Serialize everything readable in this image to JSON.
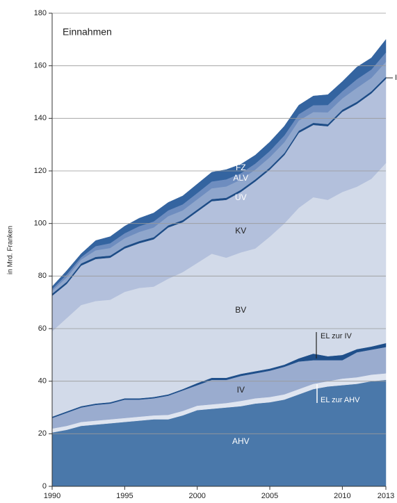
{
  "chart_data": {
    "type": "stacked-area",
    "title": "Einnahmen",
    "y_label": "in Mrd. Franken",
    "x": [
      1990,
      1991,
      1992,
      1993,
      1994,
      1995,
      1996,
      1997,
      1998,
      1999,
      2000,
      2001,
      2002,
      2003,
      2004,
      2005,
      2006,
      2007,
      2008,
      2009,
      2010,
      2011,
      2012,
      2013
    ],
    "xlim": [
      1990,
      2013
    ],
    "xticks": [
      1990,
      1995,
      2000,
      2005,
      2010,
      2013
    ],
    "ylim": [
      0,
      180
    ],
    "yticks": [
      0,
      20,
      40,
      60,
      80,
      100,
      120,
      140,
      160,
      180
    ],
    "grid": true,
    "series": [
      {
        "name": "AHV",
        "color": "#4a78aa",
        "values": [
          20.5,
          21.5,
          23,
          23.5,
          24,
          24.5,
          25,
          25.5,
          25.5,
          27,
          29,
          29.5,
          30,
          30.5,
          31.5,
          32,
          33,
          35,
          37,
          38,
          38.5,
          39,
          40,
          40.5
        ]
      },
      {
        "name": "EL zur AHV",
        "color": "#dfe5f0",
        "values": [
          1.5,
          1.5,
          1.5,
          1.5,
          1.5,
          1.5,
          1.5,
          1.5,
          1.7,
          1.7,
          1.7,
          1.7,
          1.7,
          2,
          2,
          2,
          2,
          2,
          2,
          2,
          2.5,
          2.5,
          2.5,
          2.5
        ]
      },
      {
        "name": "IV",
        "color": "#9aaccf",
        "values": [
          4,
          5,
          5.5,
          6,
          6,
          7,
          6.5,
          6.5,
          7.3,
          7.8,
          7.8,
          9.3,
          8.8,
          9.5,
          9.5,
          10,
          10.5,
          10.5,
          9,
          8,
          7,
          9.5,
          9.5,
          10
        ]
      },
      {
        "name": "EL zur IV",
        "color": "#1f4f8a",
        "values": [
          0.5,
          0.5,
          0.5,
          0.5,
          0.5,
          0.5,
          0.5,
          0.5,
          0.5,
          0.5,
          0.8,
          0.8,
          0.8,
          0.8,
          0.8,
          0.8,
          0.8,
          1.2,
          2.5,
          1.5,
          2,
          1.2,
          1.2,
          1.5
        ]
      },
      {
        "name": "BV",
        "color": "#d2dae9",
        "values": [
          32.5,
          35.5,
          38.5,
          39,
          39,
          40.5,
          42,
          42,
          44,
          44.5,
          45.7,
          47.2,
          45.7,
          46.2,
          46.7,
          50.2,
          53.7,
          57.3,
          59.5,
          59.5,
          62,
          61.8,
          63.8,
          68.5
        ]
      },
      {
        "name": "KV",
        "color": "#b3c0dc",
        "values": [
          13.5,
          13,
          15,
          16,
          16,
          16.5,
          17,
          18,
          19.5,
          19,
          19.5,
          20,
          22,
          23,
          25.5,
          25.5,
          26,
          28.5,
          27.5,
          28,
          30.5,
          31.5,
          32.5,
          32
        ]
      },
      {
        "name": "I",
        "color": "#1d4c86",
        "values": [
          0.8,
          0.8,
          0.8,
          0.8,
          0.8,
          0.8,
          0.8,
          0.8,
          0.8,
          0.8,
          0.8,
          0.8,
          0.8,
          0.8,
          0.8,
          0.8,
          0.8,
          0.8,
          0.8,
          0.8,
          0.8,
          0.8,
          0.8,
          0.8
        ]
      },
      {
        "name": "UV",
        "color": "#8fa6cc",
        "values": [
          1.1,
          1.7,
          1.5,
          2.5,
          2.9,
          3.1,
          3.5,
          3.7,
          3.5,
          3.7,
          3.9,
          4.1,
          4.3,
          3.9,
          3.7,
          3.9,
          4.1,
          3.9,
          4.1,
          4.5,
          4.3,
          5.3,
          5.1,
          5.7
        ]
      },
      {
        "name": "ALV",
        "color": "#6e8dbf",
        "values": [
          0.7,
          1.1,
          0.9,
          1.6,
          1.8,
          1.9,
          2.2,
          2.3,
          2.2,
          2.3,
          2.4,
          2.6,
          2.7,
          2.4,
          2.3,
          2.4,
          2.6,
          2.4,
          2.6,
          2.8,
          2.7,
          3.3,
          3.2,
          3.6
        ]
      },
      {
        "name": "FZ",
        "color": "#3464a0",
        "values": [
          0.9,
          1.4,
          1.3,
          2.1,
          2.5,
          2.7,
          3.0,
          3.2,
          3.0,
          3.2,
          3.4,
          3.5,
          3.7,
          3.4,
          3.2,
          3.4,
          3.5,
          3.4,
          3.5,
          3.9,
          3.7,
          4.6,
          4.4,
          4.9
        ]
      }
    ]
  }
}
